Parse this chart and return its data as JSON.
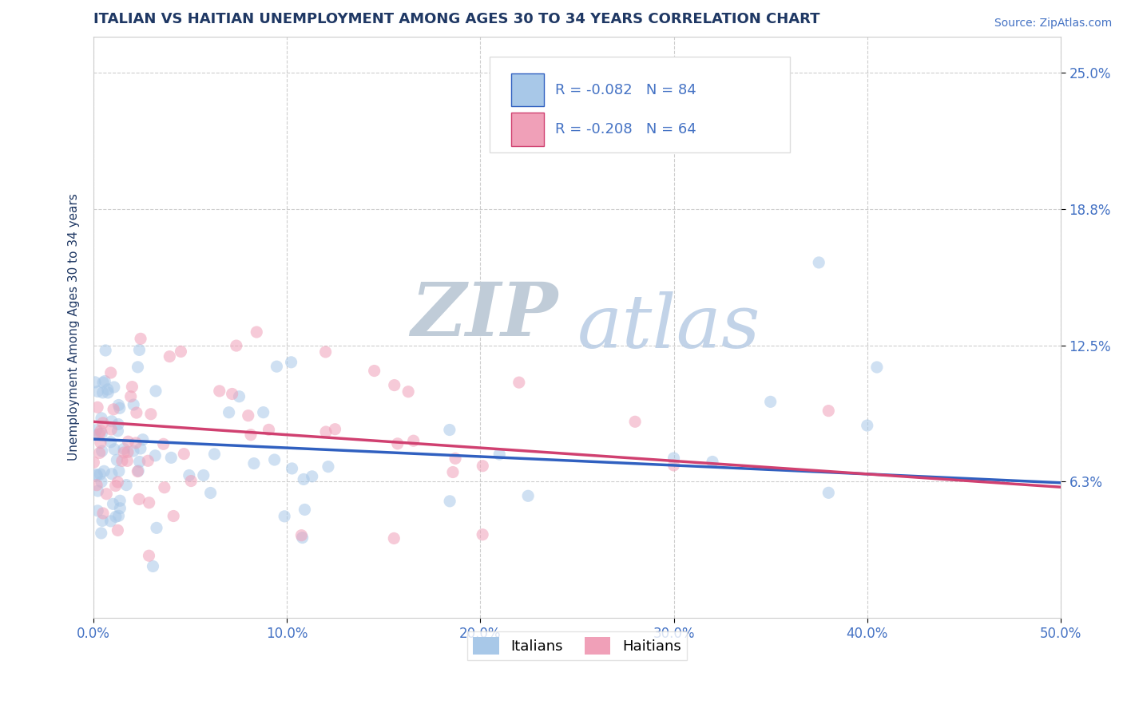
{
  "title": "ITALIAN VS HAITIAN UNEMPLOYMENT AMONG AGES 30 TO 34 YEARS CORRELATION CHART",
  "source": "Source: ZipAtlas.com",
  "ylabel": "Unemployment Among Ages 30 to 34 years",
  "xlim": [
    0.0,
    0.5
  ],
  "ylim": [
    0.0,
    0.2667
  ],
  "xticks": [
    0.0,
    0.1,
    0.2,
    0.3,
    0.4,
    0.5
  ],
  "xtick_labels": [
    "0.0%",
    "10.0%",
    "20.0%",
    "30.0%",
    "40.0%",
    "50.0%"
  ],
  "ytick_vals": [
    0.0625,
    0.125,
    0.1875,
    0.25
  ],
  "ytick_labels": [
    "6.3%",
    "12.5%",
    "18.8%",
    "25.0%"
  ],
  "italian_color": "#a8c8e8",
  "haitian_color": "#f0a0b8",
  "italian_line_color": "#3060c0",
  "haitian_line_color": "#d04070",
  "italian_R": -0.082,
  "italian_N": 84,
  "haitian_R": -0.208,
  "haitian_N": 64,
  "title_color": "#1f3864",
  "axis_label_color": "#4472c4",
  "watermark_zip_color": "#c8d0d8",
  "watermark_atlas_color": "#b8c8e0",
  "legend_text_color": "#4472c4",
  "background_color": "#ffffff",
  "grid_color": "#c8c8c8",
  "scatter_size": 120,
  "scatter_alpha": 0.55,
  "line_y_at_x0_italian": 0.082,
  "line_y_at_x50_italian": 0.062,
  "line_y_at_x0_haitian": 0.09,
  "line_y_at_x50_haitian": 0.06
}
